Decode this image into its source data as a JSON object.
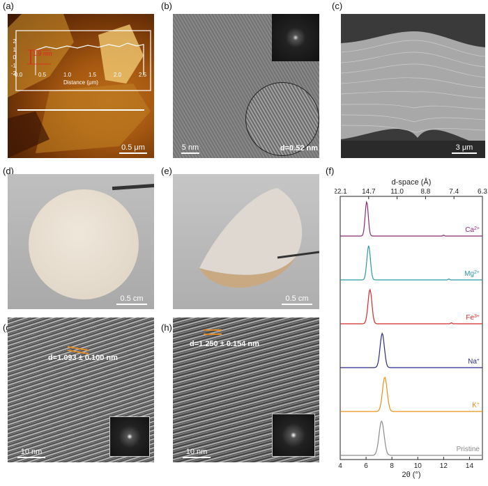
{
  "labels": {
    "a": "(a)",
    "b": "(b)",
    "c": "(c)",
    "d": "(d)",
    "e": "(e)",
    "f": "(f)",
    "g": "(g)",
    "h": "(h)"
  },
  "panel_a": {
    "scale": "0.5 μm",
    "profile_xlabel": "Distance (μm)",
    "profile_xticks": [
      "0.0",
      "0.5",
      "1.0",
      "1.5",
      "2.0",
      "2.5"
    ],
    "profile_yticks": [
      "2",
      "1",
      "0",
      "-1",
      "-2"
    ],
    "height_label": "1.9 nm"
  },
  "panel_b": {
    "scale": "5 nm",
    "spacing": "d=0.52 nm"
  },
  "panel_c": {
    "scale": "3 μm"
  },
  "panel_d": {
    "scale": "0.5 cm"
  },
  "panel_e": {
    "scale": "0.5 cm"
  },
  "panel_g": {
    "scale": "10 nm",
    "spacing": "d=1.093 ± 0.100 nm"
  },
  "panel_h": {
    "scale": "10 nm",
    "spacing": "d=1.250 ± 0.154 nm"
  },
  "chart_data": {
    "type": "line",
    "title": "",
    "xlabel": "2θ (°)",
    "top_axis_label": "d-space (Å)",
    "xlim": [
      4,
      15
    ],
    "x_ticks": [
      4,
      6,
      8,
      10,
      12,
      14
    ],
    "top_ticks": [
      "22.1",
      "14.7",
      "11.0",
      "8.8",
      "7.4",
      "6.3"
    ],
    "series": [
      {
        "name": "Ca2+",
        "ion": "Ca",
        "charge": "2+",
        "color": "#8a2a74",
        "peak_x": 6.05,
        "minor_peak_x": 12.0
      },
      {
        "name": "Mg2+",
        "ion": "Mg",
        "charge": "2+",
        "color": "#2e96a8",
        "peak_x": 6.2,
        "minor_peak_x": 12.4
      },
      {
        "name": "Fe3+",
        "ion": "Fe",
        "charge": "3+",
        "color": "#d42a2a",
        "peak_x": 6.3,
        "minor_peak_x": 12.6
      },
      {
        "name": "Na+",
        "ion": "Na",
        "charge": "+",
        "color": "#2b2a86",
        "peak_x": 7.25,
        "minor_peak_x": null
      },
      {
        "name": "K+",
        "ion": "K",
        "charge": "+",
        "color": "#e7901c",
        "peak_x": 7.45,
        "minor_peak_x": null
      },
      {
        "name": "Pristine",
        "ion": "Pristine",
        "charge": "",
        "color": "#8c8c8c",
        "peak_x": 7.2,
        "minor_peak_x": null
      }
    ]
  }
}
